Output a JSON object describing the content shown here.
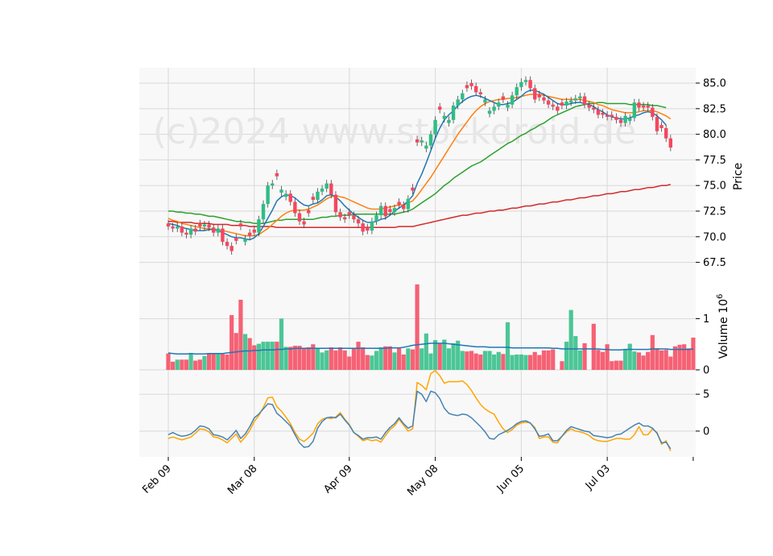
{
  "watermark": "(c)2024 www.stockdroid.de",
  "colors": {
    "panel_bg": "#f8f8f8",
    "grid": "#d9d9d9",
    "up": "#2ebd85",
    "down": "#f6465d",
    "ma_fast": "#1f77b4",
    "ma_mid": "#ff7f0e",
    "ma_slow": "#2ca02c",
    "ma_long": "#d62728",
    "vol_ma": "#1f77b4",
    "osc_a": "#4682b4",
    "osc_b": "#ffa500"
  },
  "chart_data": {
    "type": "candlestick",
    "x_ticks": [
      "Feb 09",
      "Mar 08",
      "Apr 09",
      "May 08",
      "Jun 05",
      "Jul 03"
    ],
    "price_panel": {
      "ylabel": "Price",
      "ylim": [
        65.5,
        86.5
      ],
      "ticks": [
        "67.5",
        "70.0",
        "72.5",
        "75.0",
        "77.5",
        "80.0",
        "82.5",
        "85.0"
      ],
      "closes": [
        71.0,
        70.8,
        71.0,
        70.4,
        70.2,
        70.8,
        70.5,
        71.0,
        71.2,
        70.9,
        70.4,
        70.8,
        69.5,
        69.1,
        68.6,
        69.6,
        71.0,
        69.8,
        70.1,
        70.4,
        71.7,
        73.2,
        75.0,
        75.2,
        75.9,
        74.6,
        74.2,
        73.4,
        72.3,
        71.5,
        71.2,
        72.3,
        73.6,
        74.4,
        74.7,
        75.2,
        74.1,
        72.4,
        71.9,
        71.7,
        72.1,
        71.7,
        71.3,
        70.5,
        70.6,
        71.5,
        72.1,
        73.0,
        72.0,
        72.4,
        72.8,
        73.1,
        72.7,
        73.7,
        74.5,
        79.2,
        79.4,
        78.9,
        80.0,
        81.4,
        82.4,
        81.8,
        81.4,
        82.8,
        83.4,
        84.0,
        84.5,
        84.7,
        84.1,
        83.9,
        83.4,
        82.3,
        82.7,
        83.1,
        83.4,
        82.9,
        83.8,
        84.6,
        85.1,
        85.3,
        84.5,
        83.4,
        83.6,
        83.3,
        82.9,
        82.7,
        82.3,
        82.8,
        83.2,
        83.3,
        83.5,
        83.7,
        82.9,
        82.6,
        82.4,
        81.9,
        81.9,
        81.7,
        81.7,
        81.4,
        81.1,
        81.8,
        81.6,
        83.1,
        82.6,
        82.6,
        82.6,
        81.7,
        80.3,
        80.6,
        79.6,
        78.7
      ],
      "candle_colors": "dduddudduddudddddudduuuuduudddddduuuddddddddduuudduddudduuuuduuuuudddduuuuduuuuudddddddduuuuddddddddduuudddddd",
      "ma_fast": [
        71.3,
        71.2,
        71.1,
        70.9,
        70.8,
        70.7,
        70.6,
        70.6,
        70.6,
        70.7,
        70.7,
        70.6,
        70.4,
        70.2,
        70.0,
        69.9,
        69.9,
        69.8,
        69.7,
        69.9,
        70.3,
        71.0,
        71.8,
        72.6,
        73.5,
        73.9,
        74.1,
        74.0,
        73.8,
        73.4,
        73.1,
        73.0,
        73.2,
        73.3,
        73.6,
        74.0,
        74.1,
        73.9,
        73.5,
        73.0,
        72.6,
        72.2,
        71.9,
        71.6,
        71.4,
        71.4,
        71.5,
        71.7,
        71.8,
        72.1,
        72.5,
        72.8,
        73.1,
        73.5,
        74.0,
        75.2,
        76.1,
        77.2,
        78.4,
        79.6,
        80.6,
        81.4,
        81.9,
        82.3,
        82.8,
        83.2,
        83.5,
        83.7,
        83.8,
        83.7,
        83.5,
        83.3,
        83.1,
        82.9,
        82.9,
        83.0,
        83.1,
        83.4,
        83.7,
        84.1,
        84.3,
        84.3,
        84.1,
        83.9,
        83.6,
        83.3,
        83.0,
        82.9,
        82.9,
        83.0,
        83.1,
        83.1,
        83.0,
        82.9,
        82.7,
        82.4,
        82.2,
        81.9,
        81.7,
        81.6,
        81.5,
        81.5,
        81.6,
        81.8,
        81.9,
        82.1,
        82.2,
        82.1,
        81.8,
        81.4,
        80.9
      ],
      "ma_mid": [
        71.8,
        71.6,
        71.5,
        71.3,
        71.2,
        71.1,
        71.0,
        70.9,
        70.8,
        70.8,
        70.7,
        70.7,
        70.6,
        70.5,
        70.4,
        70.3,
        70.2,
        70.1,
        70.1,
        70.1,
        70.2,
        70.5,
        70.8,
        71.2,
        71.6,
        72.0,
        72.3,
        72.5,
        72.6,
        72.6,
        72.6,
        72.7,
        72.9,
        73.1,
        73.4,
        73.7,
        73.9,
        74.0,
        73.9,
        73.8,
        73.6,
        73.4,
        73.2,
        73.0,
        72.8,
        72.7,
        72.7,
        72.7,
        72.8,
        72.9,
        73.0,
        73.1,
        73.1,
        73.3,
        73.5,
        74.0,
        74.6,
        75.2,
        75.8,
        76.5,
        77.2,
        77.9,
        78.6,
        79.3,
        80.0,
        80.6,
        81.2,
        81.8,
        82.3,
        82.7,
        83.0,
        83.2,
        83.3,
        83.4,
        83.4,
        83.5,
        83.5,
        83.6,
        83.7,
        83.8,
        83.9,
        83.9,
        83.9,
        83.8,
        83.7,
        83.6,
        83.5,
        83.4,
        83.4,
        83.4,
        83.4,
        83.4,
        83.3,
        83.2,
        83.1,
        82.9,
        82.8,
        82.6,
        82.4,
        82.3,
        82.2,
        82.1,
        82.1,
        82.1,
        82.2,
        82.3,
        82.3,
        82.3,
        82.2,
        82.0,
        81.8,
        81.5
      ],
      "ma_slow": [
        72.5,
        72.5,
        72.4,
        72.4,
        72.3,
        72.3,
        72.2,
        72.2,
        72.1,
        72.0,
        72.0,
        71.9,
        71.8,
        71.7,
        71.6,
        71.5,
        71.5,
        71.4,
        71.4,
        71.3,
        71.3,
        71.3,
        71.4,
        71.5,
        71.6,
        71.6,
        71.7,
        71.7,
        71.7,
        71.7,
        71.7,
        71.7,
        71.7,
        71.8,
        71.9,
        71.9,
        72.0,
        72.0,
        72.1,
        72.1,
        72.1,
        72.2,
        72.2,
        72.2,
        72.2,
        72.2,
        72.2,
        72.2,
        72.2,
        72.2,
        72.2,
        72.3,
        72.4,
        72.5,
        72.7,
        73.0,
        73.3,
        73.6,
        73.9,
        74.2,
        74.6,
        75.0,
        75.3,
        75.7,
        76.0,
        76.3,
        76.6,
        76.9,
        77.1,
        77.3,
        77.6,
        77.9,
        78.2,
        78.5,
        78.8,
        79.1,
        79.3,
        79.6,
        79.9,
        80.1,
        80.4,
        80.6,
        80.9,
        81.1,
        81.4,
        81.7,
        81.9,
        82.1,
        82.3,
        82.5,
        82.7,
        82.8,
        82.9,
        83.0,
        83.0,
        83.1,
        83.1,
        83.0,
        83.0,
        83.0,
        83.0,
        83.0,
        82.9,
        82.9,
        82.9,
        82.9,
        82.9,
        82.8,
        82.8,
        82.7,
        82.6
      ],
      "ma_long": [
        71.5,
        71.5,
        71.4,
        71.4,
        71.4,
        71.4,
        71.3,
        71.3,
        71.3,
        71.3,
        71.2,
        71.2,
        71.2,
        71.2,
        71.1,
        71.1,
        71.1,
        71.1,
        71.0,
        71.0,
        71.0,
        71.0,
        71.0,
        71.0,
        70.9,
        70.9,
        70.9,
        70.9,
        70.9,
        70.9,
        70.9,
        70.9,
        70.9,
        70.9,
        70.9,
        70.9,
        70.9,
        70.9,
        70.9,
        70.9,
        70.9,
        70.9,
        70.9,
        70.9,
        70.9,
        70.9,
        70.9,
        70.9,
        70.9,
        70.9,
        70.9,
        71.0,
        71.0,
        71.0,
        71.0,
        71.1,
        71.2,
        71.3,
        71.4,
        71.5,
        71.6,
        71.7,
        71.8,
        71.9,
        72.0,
        72.1,
        72.1,
        72.2,
        72.3,
        72.3,
        72.4,
        72.5,
        72.5,
        72.6,
        72.6,
        72.7,
        72.8,
        72.8,
        72.9,
        73.0,
        73.0,
        73.1,
        73.2,
        73.2,
        73.3,
        73.4,
        73.4,
        73.5,
        73.6,
        73.6,
        73.7,
        73.8,
        73.8,
        73.9,
        74.0,
        74.0,
        74.1,
        74.2,
        74.2,
        74.3,
        74.4,
        74.4,
        74.5,
        74.6,
        74.6,
        74.7,
        74.8,
        74.8,
        74.9,
        75.0,
        75.0,
        75.1
      ]
    },
    "volume_panel": {
      "ylabel": "Volume  10^6",
      "ylim": [
        0,
        1.7
      ],
      "ticks": [
        "0",
        "1"
      ],
      "values": [
        0.32,
        0.16,
        0.2,
        0.2,
        0.2,
        0.33,
        0.18,
        0.2,
        0.27,
        0.33,
        0.31,
        0.32,
        0.31,
        0.3,
        1.07,
        0.72,
        1.37,
        0.7,
        0.62,
        0.48,
        0.51,
        0.55,
        0.55,
        0.55,
        0.55,
        1.0,
        0.45,
        0.45,
        0.47,
        0.47,
        0.43,
        0.44,
        0.5,
        0.43,
        0.34,
        0.38,
        0.44,
        0.38,
        0.44,
        0.38,
        0.26,
        0.43,
        0.55,
        0.44,
        0.29,
        0.28,
        0.37,
        0.44,
        0.46,
        0.46,
        0.34,
        0.42,
        0.3,
        0.42,
        0.4,
        1.67,
        0.42,
        0.71,
        0.32,
        0.58,
        0.52,
        0.59,
        0.42,
        0.52,
        0.57,
        0.37,
        0.36,
        0.37,
        0.32,
        0.3,
        0.37,
        0.37,
        0.3,
        0.35,
        0.31,
        0.93,
        0.29,
        0.3,
        0.3,
        0.29,
        0.29,
        0.35,
        0.29,
        0.38,
        0.38,
        0.4,
        0.0,
        0.17,
        0.55,
        1.17,
        0.66,
        0.38,
        0.52,
        0.0,
        0.9,
        0.39,
        0.35,
        0.5,
        0.17,
        0.18,
        0.18,
        0.4,
        0.51,
        0.36,
        0.34,
        0.28,
        0.35,
        0.68,
        0.42,
        0.38,
        0.39,
        0.26,
        0.46,
        0.49,
        0.5,
        0.42,
        0.63
      ],
      "volume_ma": [
        0.33,
        0.32,
        0.31,
        0.31,
        0.31,
        0.32,
        0.31,
        0.31,
        0.31,
        0.32,
        0.32,
        0.32,
        0.32,
        0.33,
        0.34,
        0.35,
        0.36,
        0.37,
        0.37,
        0.38,
        0.38,
        0.39,
        0.39,
        0.39,
        0.4,
        0.4,
        0.41,
        0.41,
        0.42,
        0.42,
        0.42,
        0.42,
        0.42,
        0.42,
        0.42,
        0.42,
        0.42,
        0.42,
        0.42,
        0.42,
        0.42,
        0.42,
        0.42,
        0.42,
        0.42,
        0.42,
        0.42,
        0.42,
        0.42,
        0.43,
        0.43,
        0.43,
        0.44,
        0.46,
        0.48,
        0.49,
        0.5,
        0.51,
        0.52,
        0.52,
        0.52,
        0.52,
        0.51,
        0.5,
        0.49,
        0.48,
        0.47,
        0.46,
        0.45,
        0.45,
        0.45,
        0.44,
        0.44,
        0.44,
        0.44,
        0.44,
        0.43,
        0.43,
        0.43,
        0.43,
        0.43,
        0.43,
        0.43,
        0.43,
        0.43,
        0.42,
        0.42,
        0.41,
        0.41,
        0.41,
        0.41,
        0.41,
        0.41,
        0.41,
        0.41,
        0.41,
        0.4,
        0.4,
        0.39,
        0.39,
        0.39,
        0.4,
        0.4,
        0.4,
        0.4,
        0.4,
        0.4,
        0.41,
        0.41,
        0.41,
        0.41,
        0.4,
        0.4,
        0.4,
        0.4,
        0.4,
        0.41
      ]
    },
    "oscillator_panel": {
      "ylim": [
        -3.5,
        8.3
      ],
      "ticks": [
        "0",
        "5"
      ],
      "line_a": [
        -0.5,
        -0.2,
        -0.5,
        -0.7,
        -0.6,
        -0.4,
        0.1,
        0.7,
        0.6,
        0.3,
        -0.5,
        -0.6,
        -0.8,
        -1.2,
        -0.6,
        0.1,
        -1.0,
        -0.4,
        0.6,
        1.8,
        2.3,
        3.0,
        3.7,
        3.6,
        2.4,
        1.9,
        1.3,
        0.7,
        -0.5,
        -1.6,
        -2.2,
        -2.1,
        -1.4,
        0.4,
        1.3,
        1.8,
        1.9,
        1.8,
        2.3,
        1.5,
        0.8,
        -0.2,
        -0.6,
        -1.1,
        -0.9,
        -0.9,
        -0.8,
        -1.1,
        -0.2,
        0.5,
        1.0,
        1.8,
        1.0,
        0.4,
        0.7,
        5.4,
        5.0,
        4.0,
        5.4,
        5.2,
        4.4,
        3.1,
        2.4,
        2.2,
        2.1,
        2.3,
        2.2,
        1.8,
        1.2,
        0.6,
        -0.1,
        -1.0,
        -1.1,
        -0.5,
        -0.2,
        0.1,
        0.5,
        1.0,
        1.3,
        1.4,
        1.1,
        0.3,
        -0.7,
        -0.6,
        -0.4,
        -1.3,
        -1.3,
        -0.7,
        0.1,
        0.6,
        0.4,
        0.2,
        0.0,
        -0.1,
        -0.6,
        -0.7,
        -0.8,
        -0.9,
        -0.8,
        -0.5,
        -0.4,
        0.0,
        0.4,
        0.8,
        1.1,
        0.7,
        0.7,
        0.4,
        -0.3,
        -1.6,
        -1.5,
        -2.4
      ],
      "line_b": [
        -1.0,
        -0.8,
        -1.0,
        -1.2,
        -1.0,
        -0.8,
        -0.3,
        0.3,
        0.2,
        -0.1,
        -0.8,
        -0.9,
        -1.2,
        -1.6,
        -1.0,
        -0.4,
        -1.5,
        -0.8,
        0.1,
        1.3,
        2.1,
        3.2,
        4.5,
        4.6,
        3.3,
        2.7,
        1.9,
        1.0,
        -0.2,
        -1.1,
        -1.4,
        -0.9,
        -0.3,
        1.0,
        1.6,
        1.8,
        1.7,
        1.9,
        2.5,
        1.6,
        0.9,
        -0.2,
        -0.7,
        -1.3,
        -1.1,
        -1.3,
        -1.2,
        -1.5,
        -0.6,
        0.2,
        0.7,
        1.6,
        0.8,
        0.0,
        0.3,
        6.6,
        6.2,
        5.6,
        7.8,
        8.2,
        7.5,
        6.5,
        6.7,
        6.7,
        6.7,
        6.8,
        6.3,
        5.5,
        4.5,
        3.6,
        3.0,
        2.6,
        2.3,
        1.2,
        0.3,
        -0.2,
        0.2,
        0.8,
        1.1,
        1.2,
        1.1,
        0.5,
        -1.0,
        -0.8,
        -0.8,
        -1.5,
        -1.6,
        -0.7,
        -0.1,
        0.3,
        0.0,
        -0.1,
        -0.3,
        -0.6,
        -1.1,
        -1.3,
        -1.4,
        -1.4,
        -1.2,
        -1.0,
        -1.0,
        -1.1,
        -1.1,
        -0.5,
        0.6,
        -0.5,
        -0.5,
        0.3,
        -0.2,
        -1.8,
        -1.3,
        -2.7
      ]
    }
  }
}
